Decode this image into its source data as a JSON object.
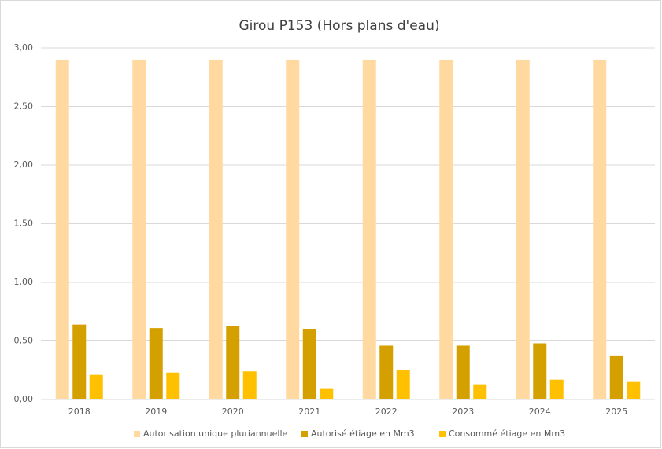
{
  "chart_data": {
    "type": "bar",
    "title": "Girou P153 (Hors plans d'eau)",
    "categories": [
      "2018",
      "2019",
      "2020",
      "2021",
      "2022",
      "2023",
      "2024",
      "2025"
    ],
    "series": [
      {
        "name": "Autorisation unique pluriannuelle",
        "color": "#ffd9a0",
        "values": [
          2.9,
          2.9,
          2.9,
          2.9,
          2.9,
          2.9,
          2.9,
          2.9
        ]
      },
      {
        "name": "Autorisé étiage en Mm3",
        "color": "#d4a000",
        "values": [
          0.64,
          0.61,
          0.63,
          0.6,
          0.46,
          0.46,
          0.48,
          0.37
        ]
      },
      {
        "name": "Consommé étiage en Mm3",
        "color": "#ffc000",
        "values": [
          0.21,
          0.23,
          0.24,
          0.09,
          0.25,
          0.13,
          0.17,
          0.15
        ]
      }
    ],
    "ylim": [
      0,
      3
    ],
    "yticks": [
      {
        "value": 0,
        "label": "0,00"
      },
      {
        "value": 0.5,
        "label": "0,50"
      },
      {
        "value": 1,
        "label": "1,00"
      },
      {
        "value": 1.5,
        "label": "1,50"
      },
      {
        "value": 2,
        "label": "2,00"
      },
      {
        "value": 2.5,
        "label": "2,50"
      },
      {
        "value": 3,
        "label": "3,00"
      }
    ],
    "grid": true,
    "legend": "bottom"
  }
}
